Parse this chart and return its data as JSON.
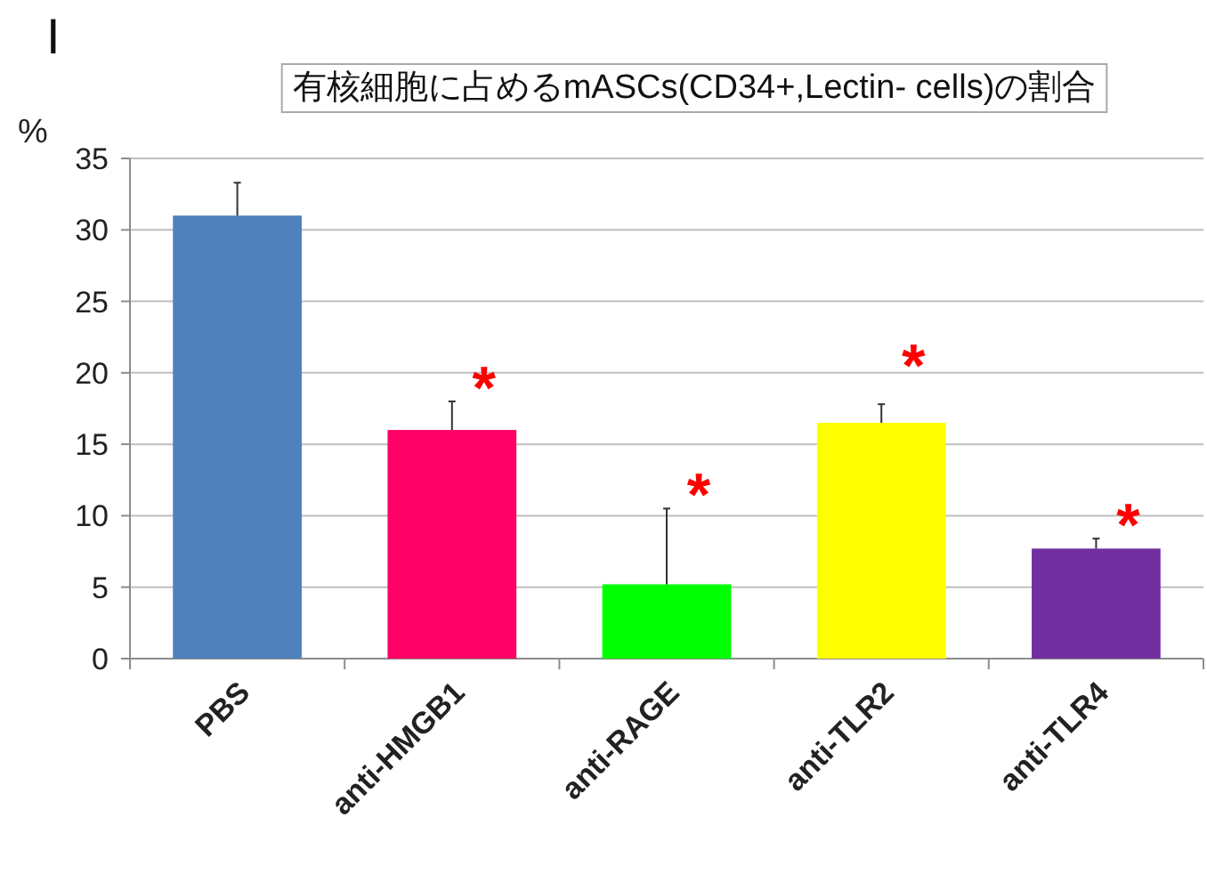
{
  "chart_data": {
    "type": "bar",
    "title": "有核細胞に占めるmASCs(CD34+,Lectin- cells)の割合",
    "ylabel": "%",
    "categories": [
      "PBS",
      "anti-HMGB1",
      "anti-RAGE",
      "anti-TLR2",
      "anti-TLR4"
    ],
    "values": [
      31,
      16,
      5.2,
      16.5,
      7.7
    ],
    "colors": [
      "#4f81bd",
      "#ff0066",
      "#00ff00",
      "#ffff00",
      "#7030a0"
    ],
    "errors": [
      [
        31,
        33.3
      ],
      [
        16,
        18
      ],
      [
        5.2,
        10.5
      ],
      [
        16.5,
        17.8
      ],
      [
        7.7,
        8.4
      ]
    ],
    "ylim": [
      0,
      35
    ],
    "yticks": [
      0,
      5,
      10,
      15,
      20,
      25,
      30,
      35
    ],
    "grid": "y",
    "annotations": [
      "I",
      "*",
      "*",
      "*",
      "*"
    ]
  }
}
